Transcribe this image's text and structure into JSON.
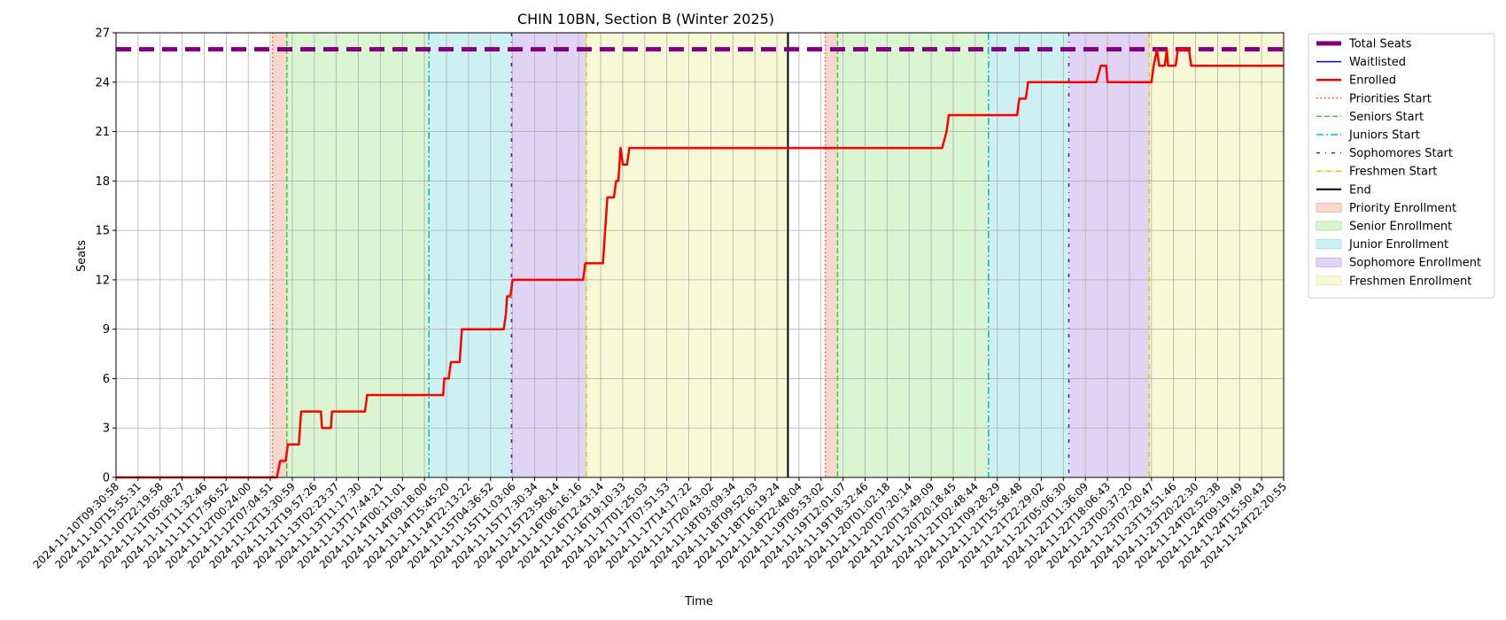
{
  "chart_data": {
    "type": "line",
    "title": "CHIN 10BN, Section B (Winter 2025)",
    "xlabel": "Time",
    "ylabel": "Seats",
    "ylim": [
      0,
      27
    ],
    "yticks": [
      0,
      3,
      6,
      9,
      12,
      15,
      18,
      21,
      24,
      27
    ],
    "grid": true,
    "legend_placement": "outside-right",
    "x_tick_labels": [
      "2024-11-10T09:30:58",
      "2024-11-10T15:55:31",
      "2024-11-10T22:19:58",
      "2024-11-11T05:08:27",
      "2024-11-11T11:32:46",
      "2024-11-11T17:56:52",
      "2024-11-12T00:24:00",
      "2024-11-12T07:04:51",
      "2024-11-12T13:30:59",
      "2024-11-12T19:57:26",
      "2024-11-13T02:23:37",
      "2024-11-13T11:17:30",
      "2024-11-13T17:44:21",
      "2024-11-14T00:11:01",
      "2024-11-14T09:18:00",
      "2024-11-14T15:45:20",
      "2024-11-14T22:13:22",
      "2024-11-15T04:36:52",
      "2024-11-15T11:03:06",
      "2024-11-15T17:30:34",
      "2024-11-15T23:58:14",
      "2024-11-16T06:16:16",
      "2024-11-16T12:43:14",
      "2024-11-16T19:10:33",
      "2024-11-17T01:25:03",
      "2024-11-17T07:51:53",
      "2024-11-17T14:17:22",
      "2024-11-17T20:43:02",
      "2024-11-18T03:09:34",
      "2024-11-18T09:52:03",
      "2024-11-18T16:19:24",
      "2024-11-18T22:48:04",
      "2024-11-19T05:53:02",
      "2024-11-19T12:01:07",
      "2024-11-19T18:32:46",
      "2024-11-20T01:02:18",
      "2024-11-20T07:20:14",
      "2024-11-20T13:49:09",
      "2024-11-20T20:18:45",
      "2024-11-21T02:48:44",
      "2024-11-21T09:28:29",
      "2024-11-21T15:58:48",
      "2024-11-21T22:29:02",
      "2024-11-22T05:06:30",
      "2024-11-22T11:36:09",
      "2024-11-22T18:06:43",
      "2024-11-23T00:37:20",
      "2024-11-23T07:20:47",
      "2024-11-23T13:51:46",
      "2024-11-23T20:22:30",
      "2024-11-24T02:52:38",
      "2024-11-24T09:19:49",
      "2024-11-24T15:50:43",
      "2024-11-24T22:20:55"
    ],
    "x_range_ticks": [
      0,
      53
    ],
    "total_seats": 26,
    "enrolled": [
      [
        0,
        0
      ],
      [
        7.3,
        0
      ],
      [
        7.45,
        1
      ],
      [
        7.7,
        1
      ],
      [
        7.8,
        2
      ],
      [
        8.3,
        2
      ],
      [
        8.4,
        4
      ],
      [
        9.3,
        4
      ],
      [
        9.35,
        3
      ],
      [
        9.75,
        3
      ],
      [
        9.8,
        4
      ],
      [
        11.3,
        4
      ],
      [
        11.4,
        5
      ],
      [
        14.6,
        5
      ],
      [
        14.85,
        5
      ],
      [
        14.9,
        6
      ],
      [
        15.1,
        6
      ],
      [
        15.2,
        7
      ],
      [
        15.6,
        7
      ],
      [
        15.7,
        9
      ],
      [
        17.6,
        9
      ],
      [
        17.7,
        10
      ],
      [
        17.75,
        11
      ],
      [
        17.9,
        11
      ],
      [
        18.0,
        12
      ],
      [
        21.2,
        12
      ],
      [
        21.3,
        13
      ],
      [
        22.1,
        13
      ],
      [
        22.2,
        15
      ],
      [
        22.3,
        17
      ],
      [
        22.6,
        17
      ],
      [
        22.7,
        18
      ],
      [
        22.8,
        18
      ],
      [
        22.9,
        20
      ],
      [
        23.0,
        19
      ],
      [
        23.2,
        19
      ],
      [
        23.3,
        20
      ],
      [
        37.5,
        20
      ],
      [
        37.7,
        21
      ],
      [
        37.8,
        22
      ],
      [
        40.6,
        22
      ],
      [
        40.9,
        22
      ],
      [
        41.0,
        23
      ],
      [
        41.3,
        23
      ],
      [
        41.4,
        24
      ],
      [
        44.5,
        24
      ],
      [
        44.7,
        25
      ],
      [
        44.95,
        25
      ],
      [
        45.0,
        24
      ],
      [
        47.0,
        24
      ],
      [
        47.1,
        25
      ],
      [
        47.25,
        26
      ],
      [
        47.35,
        25
      ],
      [
        47.6,
        25
      ],
      [
        47.7,
        26
      ],
      [
        47.75,
        25
      ],
      [
        48.1,
        25
      ],
      [
        48.2,
        26
      ],
      [
        48.7,
        26
      ],
      [
        48.8,
        25
      ],
      [
        53,
        25
      ]
    ],
    "phase_starts": {
      "priorities": [
        7.1,
        32.2
      ],
      "seniors": [
        7.75,
        32.75
      ],
      "juniors": [
        14.2,
        39.6
      ],
      "sophomores": [
        17.95,
        43.25
      ],
      "freshmen": [
        21.35,
        46.9
      ]
    },
    "end_line": 30.5,
    "legend": [
      "Total Seats",
      "Waitlisted",
      "Enrolled",
      "Priorities Start",
      "Seniors Start",
      "Juniors Start",
      "Sophomores Start",
      "Freshmen Start",
      "End",
      "Priority Enrollment",
      "Senior Enrollment",
      "Junior Enrollment",
      "Sophomore Enrollment",
      "Freshmen Enrollment"
    ],
    "colors": {
      "total_seats": "#800080",
      "waitlisted": "#0000ff",
      "enrolled": "#ff0000",
      "priorities": "#ff4500",
      "seniors": "#32cd32",
      "juniors": "#00bfbf",
      "sophomores": "#6a0dad",
      "freshmen": "#dccd00",
      "end": "#000000",
      "priority_fill": "#fad7cc",
      "senior_fill": "#d9f5d1",
      "junior_fill": "#cdf1f3",
      "sophomore_fill": "#e1d3f4",
      "freshmen_fill": "#f7f8d6"
    }
  }
}
